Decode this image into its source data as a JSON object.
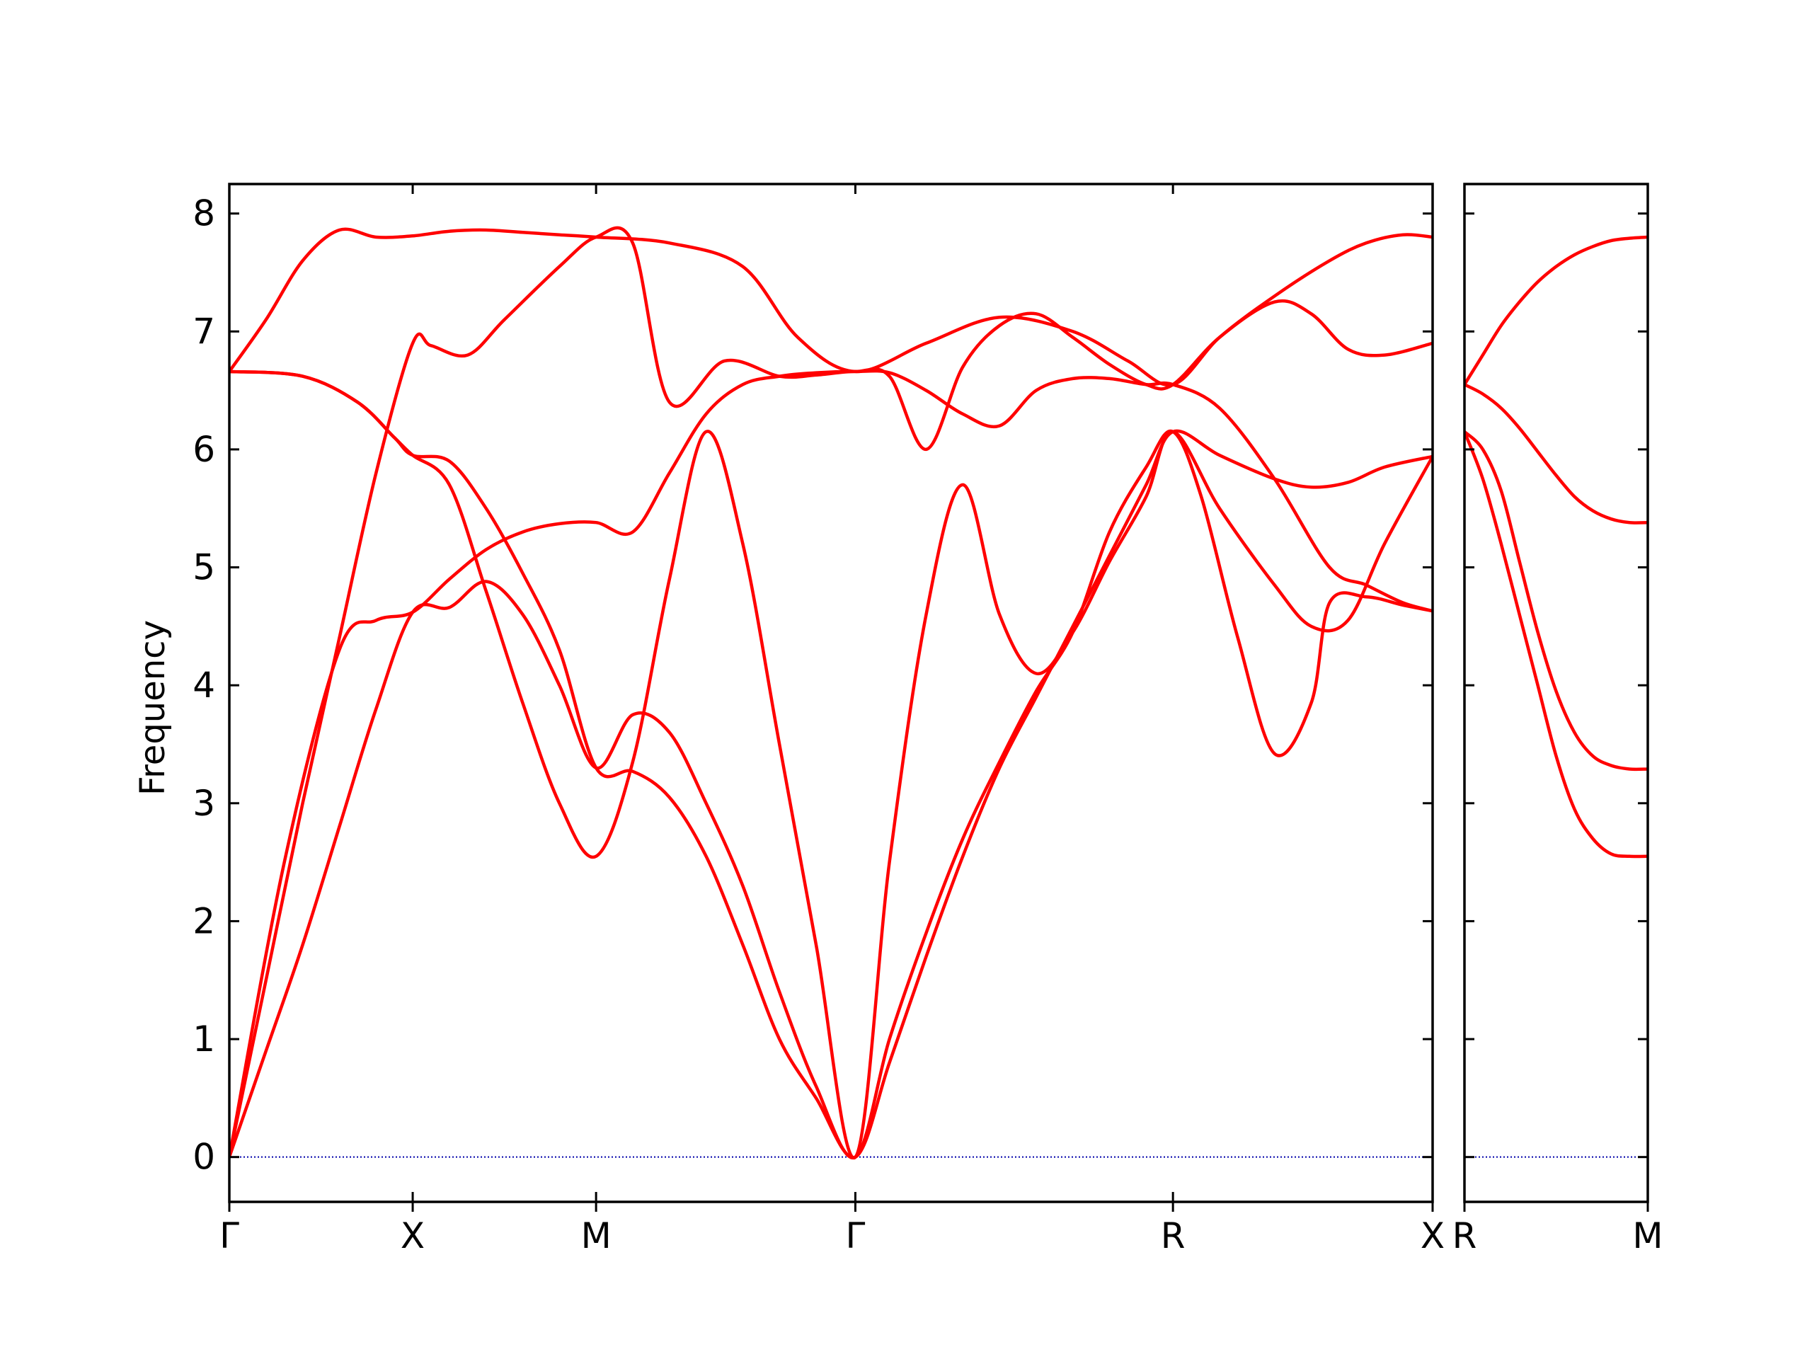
{
  "chart_data": {
    "type": "line",
    "title": "",
    "ylabel": "Frequency",
    "xlabel": "",
    "ylim": [
      -0.38,
      8.25
    ],
    "y_ticks": [
      0,
      1,
      2,
      3,
      4,
      5,
      6,
      7,
      8
    ],
    "line_color": "#ff0000",
    "zero_line_color": "#0000aa",
    "grid": false,
    "panels": [
      {
        "name": "main",
        "path_labels": [
          "Γ",
          "X",
          "M",
          "Γ",
          "R",
          "X"
        ],
        "path_positions": [
          0,
          0.5,
          1.0,
          1.707,
          2.573,
          3.281
        ],
        "branches": [
          {
            "x": [
              0,
              0.1,
              0.2,
              0.3,
              0.4,
              0.5,
              0.6,
              0.7,
              0.8,
              0.9,
              1.0,
              1.2,
              1.4,
              1.55,
              1.707,
              1.9,
              2.1,
              2.3,
              2.45,
              2.573,
              2.7,
              2.85,
              3.0,
              3.1,
              3.2,
              3.281
            ],
            "y": [
              6.66,
              7.1,
              7.6,
              7.86,
              7.8,
              7.81,
              7.85,
              7.86,
              7.84,
              7.82,
              7.8,
              7.75,
              7.55,
              6.95,
              6.66,
              6.9,
              7.12,
              7.0,
              6.75,
              6.55,
              6.95,
              7.3,
              7.6,
              7.75,
              7.82,
              7.8
            ]
          },
          {
            "x": [
              0,
              0.2,
              0.35,
              0.45,
              0.5,
              0.6,
              0.7,
              0.8,
              0.9,
              1.0,
              1.1,
              1.2,
              1.3,
              1.4,
              1.5,
              1.6,
              1.707,
              1.8,
              1.9,
              2.0,
              2.1,
              2.2,
              2.3,
              2.4,
              2.5,
              2.573,
              2.7,
              2.85,
              2.95,
              3.05,
              3.15,
              3.281
            ],
            "y": [
              6.66,
              6.62,
              6.4,
              6.1,
              5.95,
              5.9,
              5.5,
              4.95,
              4.3,
              3.3,
              3.27,
              3.05,
              2.55,
              1.8,
              1.0,
              0.5,
              0.0,
              0.8,
              1.7,
              2.55,
              3.3,
              3.9,
              4.5,
              5.1,
              5.7,
              6.15,
              5.95,
              5.75,
              5.68,
              5.72,
              5.85,
              5.94
            ]
          },
          {
            "x": [
              0,
              0.1,
              0.2,
              0.3,
              0.4,
              0.5,
              0.6,
              0.7,
              0.8,
              0.9,
              1.0,
              1.1,
              1.2,
              1.3,
              1.4,
              1.5,
              1.6,
              1.707,
              1.8,
              1.9,
              2.0,
              2.1,
              2.2,
              2.3,
              2.4,
              2.5,
              2.573,
              2.65,
              2.75,
              2.85,
              2.95,
              3.0,
              3.1,
              3.2,
              3.281
            ],
            "y": [
              0.0,
              0.9,
              1.8,
              2.8,
              3.8,
              4.62,
              4.66,
              4.88,
              4.6,
              4.0,
              3.3,
              3.75,
              3.6,
              3.0,
              2.3,
              1.4,
              0.6,
              0.0,
              1.0,
              1.9,
              2.7,
              3.35,
              3.95,
              4.45,
              5.3,
              5.85,
              6.15,
              5.6,
              4.4,
              3.42,
              3.85,
              4.7,
              4.75,
              4.68,
              4.63
            ]
          },
          {
            "x": [
              0,
              0.1,
              0.2,
              0.3,
              0.4,
              0.5,
              0.55,
              0.65,
              0.75,
              0.9,
              1.0,
              1.1,
              1.2,
              1.35,
              1.5,
              1.6,
              1.707,
              1.8,
              1.9,
              2.0,
              2.1,
              2.2,
              2.3,
              2.4,
              2.5,
              2.573,
              2.7,
              2.85,
              2.95,
              3.05,
              3.15,
              3.281
            ],
            "y": [
              0.0,
              1.5,
              3.0,
              4.4,
              5.8,
              6.9,
              6.88,
              6.8,
              7.1,
              7.55,
              7.8,
              7.75,
              6.4,
              6.75,
              6.62,
              6.63,
              6.66,
              6.62,
              6.0,
              6.7,
              7.05,
              7.15,
              6.95,
              6.72,
              6.55,
              6.55,
              6.95,
              7.25,
              7.15,
              6.85,
              6.8,
              6.9
            ]
          },
          {
            "x": [
              0,
              0.15,
              0.3,
              0.4,
              0.5,
              0.6,
              0.7,
              0.8,
              0.9,
              1.0,
              1.1,
              1.2,
              1.3,
              1.4,
              1.5,
              1.6,
              1.707,
              1.8,
              1.9,
              2.0,
              2.1,
              2.2,
              2.3,
              2.4,
              2.5,
              2.573,
              2.7,
              2.85,
              3.0,
              3.1,
              3.2,
              3.281
            ],
            "y": [
              0.0,
              2.5,
              4.3,
              4.55,
              4.62,
              4.9,
              5.15,
              5.3,
              5.37,
              5.38,
              5.3,
              5.8,
              6.3,
              6.55,
              6.62,
              6.65,
              6.66,
              6.65,
              6.5,
              6.3,
              6.2,
              6.5,
              6.6,
              6.6,
              6.55,
              6.55,
              6.35,
              5.75,
              5.0,
              4.85,
              4.7,
              4.63
            ]
          },
          {
            "x": [
              0,
              0.2,
              0.35,
              0.45,
              0.5,
              0.6,
              0.7,
              0.8,
              0.9,
              1.0,
              1.1,
              1.2,
              1.3,
              1.4,
              1.5,
              1.6,
              1.707,
              1.8,
              1.9,
              2.0,
              2.1,
              2.2,
              2.3,
              2.4,
              2.5,
              2.573,
              2.7,
              2.85,
              2.95,
              3.05,
              3.15,
              3.281
            ],
            "y": [
              6.66,
              6.62,
              6.4,
              6.1,
              5.95,
              5.7,
              4.8,
              3.85,
              3.0,
              2.55,
              3.35,
              4.9,
              6.15,
              5.2,
              3.5,
              1.8,
              0.0,
              2.5,
              4.6,
              5.7,
              4.6,
              4.1,
              4.45,
              5.05,
              5.6,
              6.15,
              5.5,
              4.85,
              4.5,
              4.55,
              5.2,
              5.94
            ]
          }
        ]
      },
      {
        "name": "right",
        "path_labels": [
          "R",
          "M"
        ],
        "path_positions": [
          0,
          1
        ],
        "branches": [
          {
            "x": [
              0,
              0.1,
              0.2,
              0.3,
              0.4,
              0.5,
              0.6,
              0.7,
              0.8,
              0.9,
              1.0
            ],
            "y": [
              6.55,
              6.8,
              7.05,
              7.25,
              7.42,
              7.55,
              7.65,
              7.72,
              7.77,
              7.79,
              7.8
            ]
          },
          {
            "x": [
              0,
              0.1,
              0.2,
              0.3,
              0.4,
              0.5,
              0.6,
              0.7,
              0.8,
              0.9,
              1.0
            ],
            "y": [
              6.55,
              6.47,
              6.35,
              6.18,
              5.98,
              5.78,
              5.6,
              5.48,
              5.41,
              5.38,
              5.38
            ]
          },
          {
            "x": [
              0,
              0.1,
              0.2,
              0.3,
              0.4,
              0.5,
              0.6,
              0.7,
              0.8,
              0.9,
              1.0
            ],
            "y": [
              6.15,
              5.75,
              5.2,
              4.6,
              4.0,
              3.4,
              2.95,
              2.7,
              2.57,
              2.55,
              2.55
            ]
          },
          {
            "x": [
              0,
              0.1,
              0.2,
              0.3,
              0.4,
              0.5,
              0.6,
              0.7,
              0.8,
              0.9,
              1.0
            ],
            "y": [
              6.15,
              6.0,
              5.65,
              5.05,
              4.45,
              3.95,
              3.6,
              3.4,
              3.32,
              3.29,
              3.29
            ]
          }
        ]
      }
    ]
  }
}
